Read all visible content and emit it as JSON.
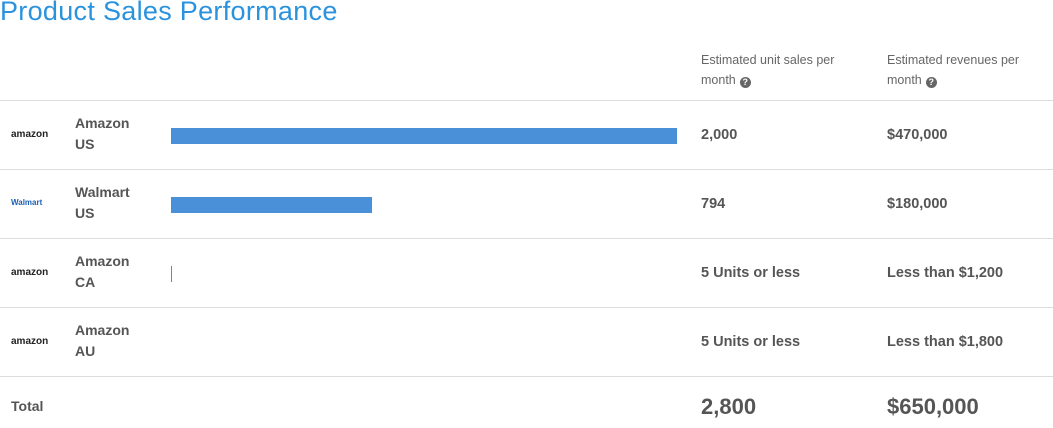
{
  "title": "Product Sales Performance",
  "header": {
    "units": "Estimated unit sales per month",
    "revenues": "Estimated revenues per month"
  },
  "rows": [
    {
      "logo": "amazon",
      "market": "Amazon",
      "country": "US",
      "units": {
        "value": 2000,
        "label": "2,000"
      },
      "revenue": "$470,000"
    },
    {
      "logo": "Walmart",
      "market": "Walmart",
      "country": "US",
      "units": {
        "value": 794,
        "label": "794"
      },
      "revenue": "$180,000"
    },
    {
      "logo": "amazon",
      "market": "Amazon",
      "country": "CA",
      "units": {
        "value": 5,
        "label": "5 Units or less"
      },
      "revenue": "Less than $1,200"
    },
    {
      "logo": "amazon",
      "market": "Amazon",
      "country": "AU",
      "units": {
        "value": null,
        "label": "5 Units or less"
      },
      "revenue": "Less than $1,800"
    }
  ],
  "total": {
    "label": "Total",
    "units": "2,800",
    "revenue": "$650,000"
  },
  "bar_color": "#4a90d9"
}
